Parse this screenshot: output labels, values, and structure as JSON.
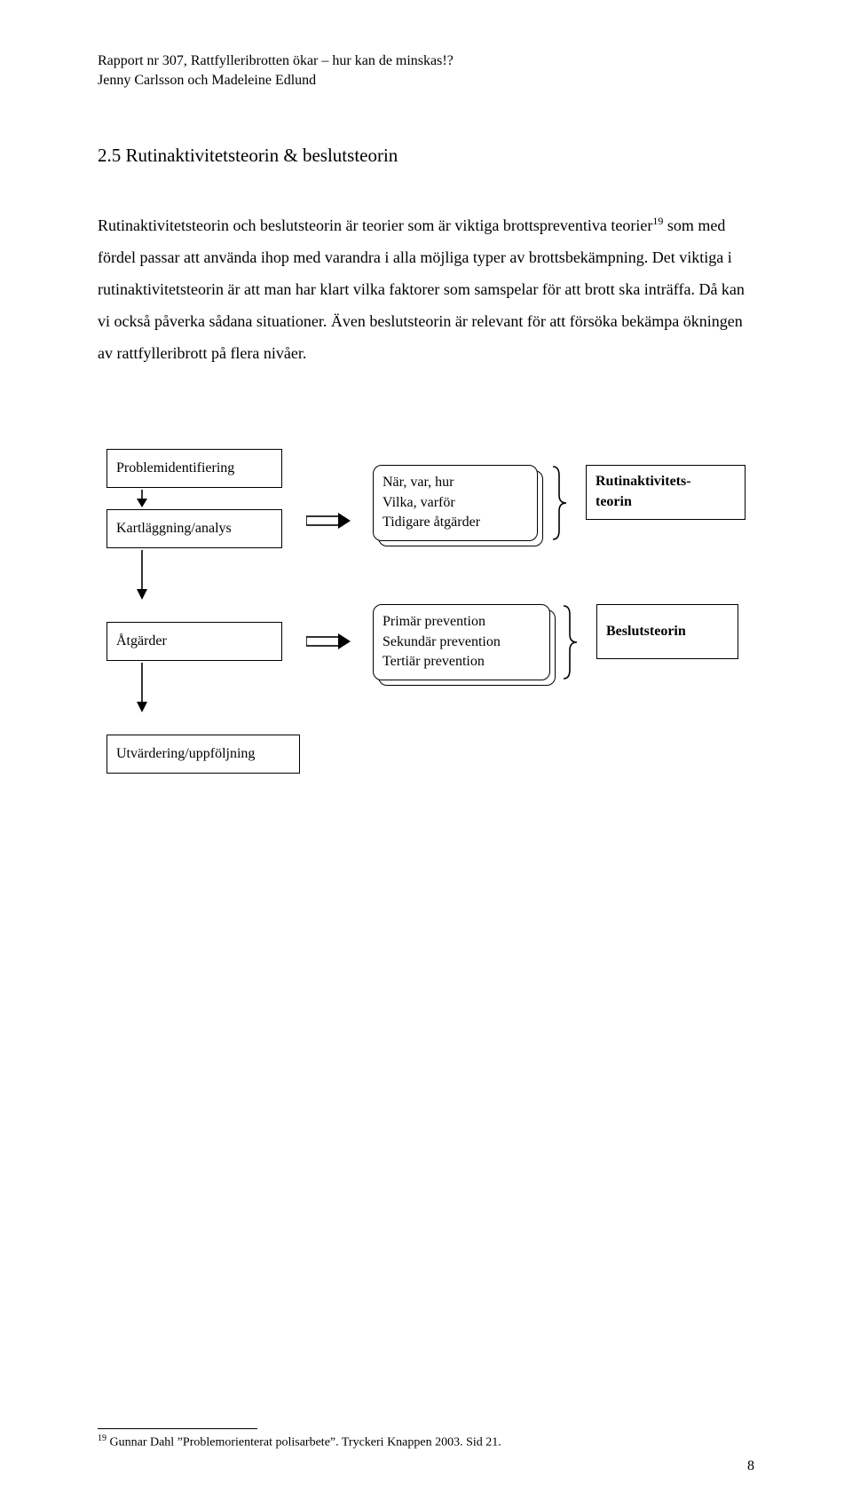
{
  "header": {
    "line1": "Rapport nr 307, Rattfylleribrotten ökar – hur kan de minskas!?",
    "line2": "Jenny Carlsson och Madeleine Edlund"
  },
  "section_title": "2.5 Rutinaktivitetsteorin & beslutsteorin",
  "body_html": "Rutinaktivitetsteorin och beslutsteorin är teorier som är viktiga brottspreventiva teorier<span class='sup'>19</span> som med fördel passar att använda ihop med varandra i alla möjliga typer av brottsbekämpning. Det viktiga i rutinaktivitetsteorin är att man har klart vilka faktorer som samspelar för att brott ska inträffa. Då kan vi också påverka sådana situationer. Även beslutsteorin är relevant för att försöka bekämpa ökningen av rattfylleribrott på flera nivåer.",
  "diagram": {
    "box1": "Problemidentifiering",
    "box2": "Kartläggning/analys",
    "box3": "Åtgärder",
    "box4": "Utvärdering/uppföljning",
    "r1_line1": "När, var, hur",
    "r1_line2": "Vilka, varför",
    "r1_line3": "Tidigare åtgärder",
    "r2_line1": "Primär prevention",
    "r2_line2": "Sekundär prevention",
    "r2_line3": "Tertiär prevention",
    "t1_line1": "Rutinaktivitets-",
    "t1_line2": "teorin",
    "t2": "Beslutsteorin",
    "stroke": "#000000"
  },
  "footnote": "<span class='sup'>19</span> Gunnar Dahl ”Problemorienterat polisarbete”. Tryckeri Knappen 2003. Sid 21.",
  "page_number": "8"
}
